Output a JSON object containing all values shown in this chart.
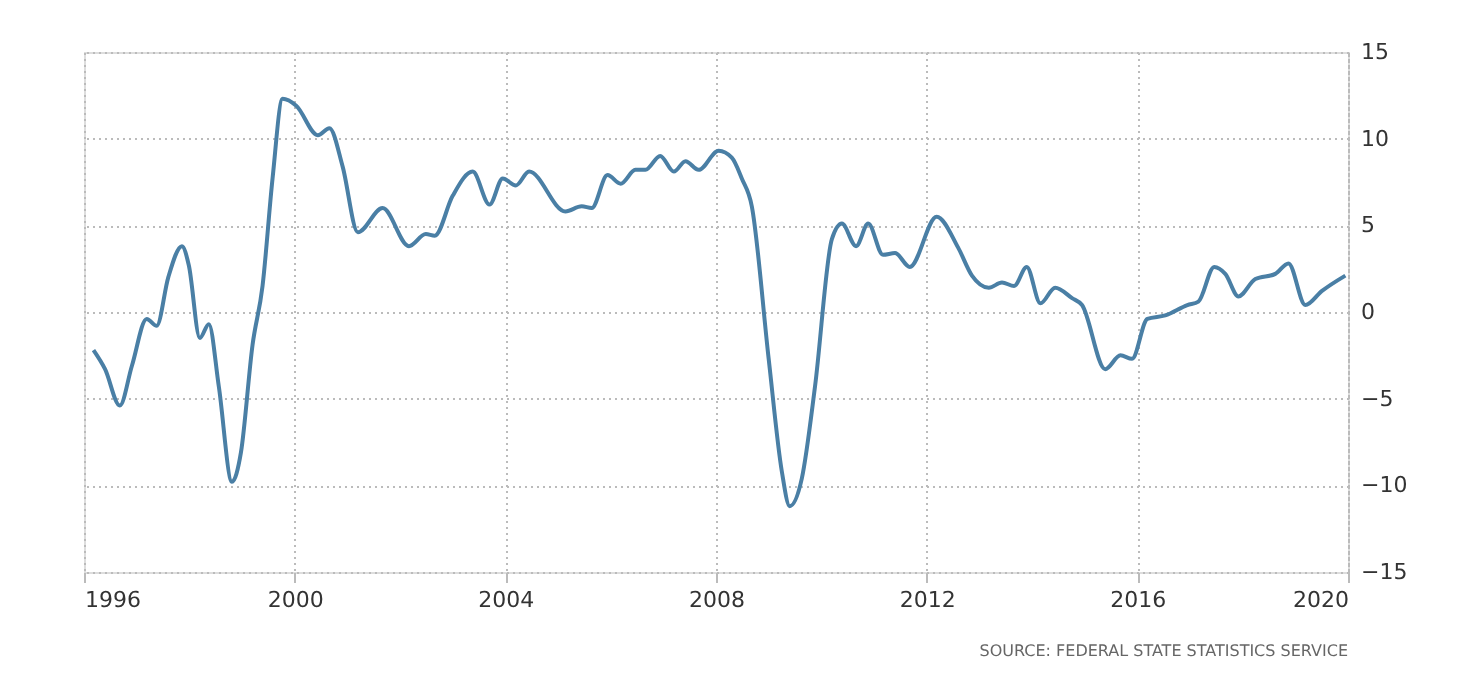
{
  "chart_data": {
    "type": "line",
    "x": [
      1996.18,
      1996.4,
      1996.68,
      1996.91,
      1997.19,
      1997.38,
      1997.6,
      1997.86,
      1997.99,
      1998.2,
      1998.37,
      1998.56,
      1998.81,
      1998.98,
      1999.2,
      1999.39,
      1999.58,
      1999.77,
      2000.03,
      2000.44,
      2000.66,
      2000.91,
      2001.2,
      2001.67,
      2002.17,
      2002.49,
      2002.66,
      2003.0,
      2003.38,
      2003.7,
      2003.95,
      2004.2,
      2004.45,
      2005.14,
      2005.45,
      2005.64,
      2005.94,
      2006.19,
      2006.47,
      2006.66,
      2006.94,
      2007.2,
      2007.42,
      2007.67,
      2008.05,
      2008.3,
      2008.49,
      2008.68,
      2009.0,
      2009.25,
      2009.4,
      2009.63,
      2009.88,
      2010.2,
      2010.39,
      2010.66,
      2010.89,
      2011.17,
      2011.4,
      2011.68,
      2012.19,
      2012.6,
      2012.86,
      2013.18,
      2013.43,
      2013.66,
      2013.9,
      2014.16,
      2014.44,
      2014.76,
      2014.95,
      2015.39,
      2015.68,
      2015.9,
      2016.19,
      2016.53,
      2016.95,
      2017.16,
      2017.46,
      2017.67,
      2017.92,
      2018.24,
      2018.62,
      2018.87,
      2019.19,
      2019.5,
      2019.95
    ],
    "series": [
      {
        "color": "#4a7fa5",
        "values": [
          -2.2,
          -3.3,
          -5.4,
          -3.1,
          -0.4,
          -0.8,
          2.0,
          3.8,
          2.7,
          -1.5,
          -0.7,
          -4.3,
          -9.8,
          -8.1,
          -1.9,
          1.5,
          7.7,
          12.3,
          11.9,
          10.2,
          10.6,
          8.4,
          4.6,
          6.0,
          3.8,
          4.5,
          4.4,
          6.7,
          8.1,
          6.2,
          7.7,
          7.3,
          8.1,
          5.8,
          6.1,
          6.0,
          7.9,
          7.4,
          8.2,
          8.2,
          9.0,
          8.1,
          8.7,
          8.2,
          9.3,
          8.9,
          7.7,
          6.1,
          -2.7,
          -9.2,
          -11.2,
          -9.6,
          -4.3,
          4.2,
          5.1,
          3.8,
          5.1,
          3.3,
          3.4,
          2.6,
          5.5,
          3.7,
          2.1,
          1.4,
          1.7,
          1.5,
          2.6,
          0.5,
          1.4,
          0.8,
          0.4,
          -3.3,
          -2.5,
          -2.7,
          -0.4,
          -0.2,
          0.4,
          0.6,
          2.6,
          2.2,
          0.9,
          1.9,
          2.2,
          2.8,
          0.4,
          1.2,
          2.1
        ]
      }
    ],
    "xlim": [
      1996,
      2020
    ],
    "xticks": [
      1996,
      2000,
      2004,
      2008,
      2012,
      2016,
      2020
    ],
    "ylim": [
      -15,
      15
    ],
    "yticks": [
      -15,
      -10,
      -5,
      0,
      5,
      10,
      15
    ],
    "grid": true,
    "line_style": "solid",
    "marker": "none",
    "annotations": [
      "SOURCE: FEDERAL STATE STATISTICS SERVICE"
    ]
  }
}
